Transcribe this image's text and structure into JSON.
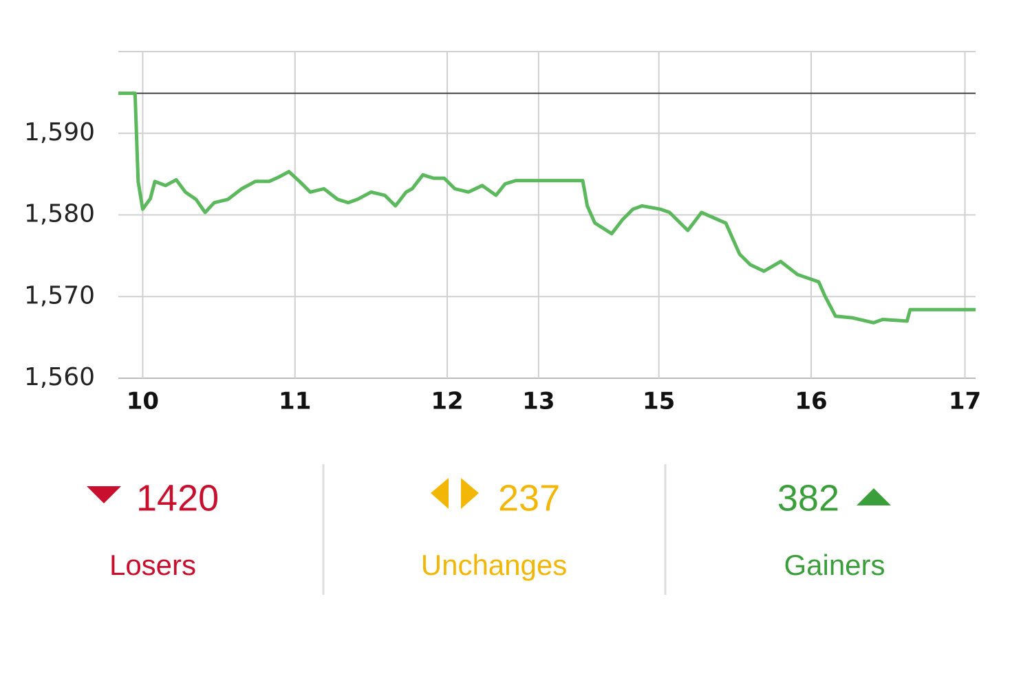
{
  "chart_data": {
    "type": "line",
    "x": [
      9.84,
      9.95,
      9.97,
      10.0,
      10.05,
      10.08,
      10.15,
      10.22,
      10.28,
      10.35,
      10.41,
      10.47,
      10.56,
      10.65,
      10.74,
      10.83,
      10.89,
      10.96,
      11.03,
      11.1,
      11.19,
      11.28,
      11.35,
      11.41,
      11.5,
      11.59,
      11.66,
      11.73,
      11.77,
      11.84,
      11.91,
      11.98,
      12.05,
      12.14,
      12.23,
      12.32,
      12.38,
      12.45,
      12.89,
      12.92,
      12.97,
      13.08,
      13.15,
      13.22,
      13.28,
      13.4,
      13.46,
      13.58,
      13.67,
      13.83,
      13.87,
      13.92,
      13.99,
      14.08,
      14.19,
      14.3,
      14.44,
      14.48,
      14.55,
      14.66,
      14.8,
      14.86,
      15.02,
      15.04,
      15.47
    ],
    "series": [
      {
        "color": "#5cb85c",
        "values": [
          1594.9,
          1594.9,
          1584.1,
          1580.7,
          1582.0,
          1584.1,
          1583.6,
          1584.3,
          1582.8,
          1581.9,
          1580.3,
          1581.5,
          1581.9,
          1583.2,
          1584.1,
          1584.1,
          1584.6,
          1585.3,
          1584.1,
          1582.8,
          1583.2,
          1581.9,
          1581.5,
          1581.9,
          1582.8,
          1582.4,
          1581.1,
          1582.8,
          1583.2,
          1584.9,
          1584.5,
          1584.5,
          1583.2,
          1582.8,
          1583.6,
          1582.4,
          1583.8,
          1584.2,
          1584.2,
          1581.1,
          1579.0,
          1577.7,
          1579.4,
          1580.7,
          1581.1,
          1580.7,
          1580.3,
          1578.1,
          1580.3,
          1579.0,
          1577.3,
          1575.2,
          1573.9,
          1573.1,
          1574.3,
          1572.7,
          1571.8,
          1570.1,
          1567.6,
          1567.4,
          1566.8,
          1567.2,
          1567.0,
          1568.4,
          1568.4
        ]
      }
    ],
    "reference_line": 1594.9,
    "xlim": [
      9.84,
      15.47
    ],
    "xticks": [
      10,
      11,
      12,
      {
        "value": 12.6,
        "label": "13"
      },
      {
        "value": 13.39,
        "label": "15"
      },
      {
        "value": 14.39,
        "label": "16"
      },
      {
        "value": 15.4,
        "label": "17"
      }
    ],
    "ylim": [
      1560,
      1600
    ],
    "yticks": [
      {
        "value": 1560,
        "label": "1,560"
      },
      {
        "value": 1570,
        "label": "1,570"
      },
      {
        "value": 1580,
        "label": "1,580"
      },
      {
        "value": 1590,
        "label": "1,590"
      }
    ],
    "grid": true
  },
  "breadth": [
    {
      "value": 1420,
      "label": "Losers",
      "color": "#c8102e"
    },
    {
      "value": 237,
      "label": "Unchanges",
      "color": "#f2b705"
    },
    {
      "value": 382,
      "label": "Gainers",
      "color": "#3a9f3a"
    }
  ]
}
